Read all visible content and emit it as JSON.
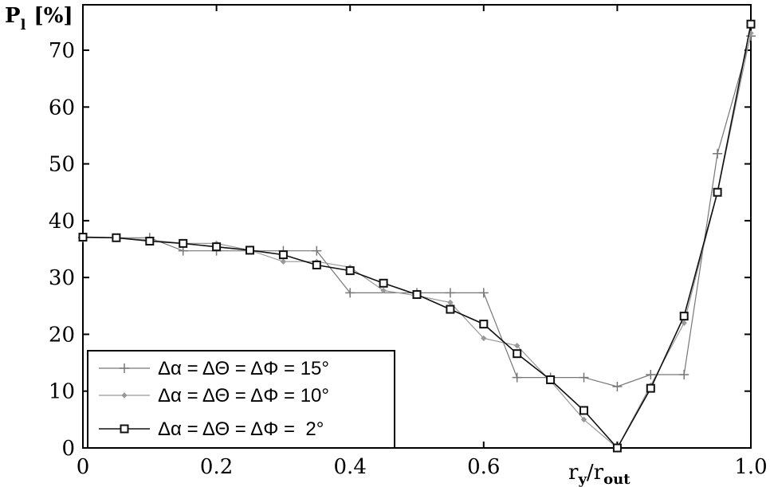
{
  "chart_data": {
    "type": "line",
    "ylabel": {
      "symbol": "P",
      "subscript": "l",
      "unit": "[%]"
    },
    "xlabel": {
      "base1": "r",
      "sub1": "y",
      "slash": "/",
      "base2": "r",
      "sub2": "out"
    },
    "xlim": [
      0,
      1.0
    ],
    "ylim": [
      0,
      78
    ],
    "x_ticks": [
      0,
      0.2,
      0.4,
      0.6,
      0.8,
      1.0
    ],
    "x_tick_labels": [
      "0",
      "0.2",
      "0.4",
      "0.6",
      "",
      "1.0"
    ],
    "y_ticks": [
      0,
      10,
      20,
      30,
      40,
      50,
      60,
      70
    ],
    "y_tick_labels": [
      "0",
      "10",
      "20",
      "30",
      "40",
      "50",
      "60",
      "70"
    ],
    "grid": false,
    "legend_position": "bottom-left",
    "series": [
      {
        "name": "Δα = ΔΘ = ΔΦ = 15°",
        "marker": "plus",
        "color": "#777777",
        "points": [
          [
            0,
            37
          ],
          [
            0.1,
            37
          ],
          [
            0.15,
            34.7
          ],
          [
            0.2,
            34.7
          ],
          [
            0.3,
            34.7
          ],
          [
            0.35,
            34.7
          ],
          [
            0.4,
            27.3
          ],
          [
            0.5,
            27.3
          ],
          [
            0.55,
            27.3
          ],
          [
            0.6,
            27.3
          ],
          [
            0.65,
            12.4
          ],
          [
            0.7,
            12.4
          ],
          [
            0.75,
            12.4
          ],
          [
            0.8,
            10.8
          ],
          [
            0.85,
            12.9
          ],
          [
            0.9,
            12.9
          ],
          [
            0.95,
            51.8
          ],
          [
            1.0,
            72.5
          ]
        ]
      },
      {
        "name": "Δα = ΔΘ = ΔΦ = 10°",
        "marker": "diamond",
        "color": "#999999",
        "points": [
          [
            0,
            37
          ],
          [
            0.05,
            37
          ],
          [
            0.1,
            36.6
          ],
          [
            0.15,
            36
          ],
          [
            0.2,
            36
          ],
          [
            0.25,
            34.8
          ],
          [
            0.3,
            32.8
          ],
          [
            0.35,
            32.8
          ],
          [
            0.4,
            31.8
          ],
          [
            0.45,
            27.7
          ],
          [
            0.5,
            26.8
          ],
          [
            0.55,
            25.6
          ],
          [
            0.6,
            19.3
          ],
          [
            0.65,
            18
          ],
          [
            0.7,
            11.8
          ],
          [
            0.75,
            5
          ],
          [
            0.8,
            0
          ],
          [
            0.85,
            11
          ],
          [
            0.9,
            22
          ],
          [
            0.95,
            45
          ],
          [
            1.0,
            73
          ]
        ]
      },
      {
        "name": "Δα = ΔΘ = ΔΦ =  2°",
        "marker": "square",
        "color": "#111111",
        "points": [
          [
            0,
            37.1
          ],
          [
            0.05,
            37
          ],
          [
            0.1,
            36.4
          ],
          [
            0.15,
            36
          ],
          [
            0.2,
            35.4
          ],
          [
            0.25,
            34.8
          ],
          [
            0.3,
            34
          ],
          [
            0.35,
            32.2
          ],
          [
            0.4,
            31.2
          ],
          [
            0.45,
            29
          ],
          [
            0.5,
            27
          ],
          [
            0.55,
            24.4
          ],
          [
            0.6,
            21.8
          ],
          [
            0.65,
            16.6
          ],
          [
            0.7,
            12
          ],
          [
            0.75,
            6.6
          ],
          [
            0.8,
            0
          ],
          [
            0.85,
            10.5
          ],
          [
            0.9,
            23.2
          ],
          [
            0.95,
            45
          ],
          [
            1.0,
            74.6
          ]
        ]
      }
    ]
  }
}
